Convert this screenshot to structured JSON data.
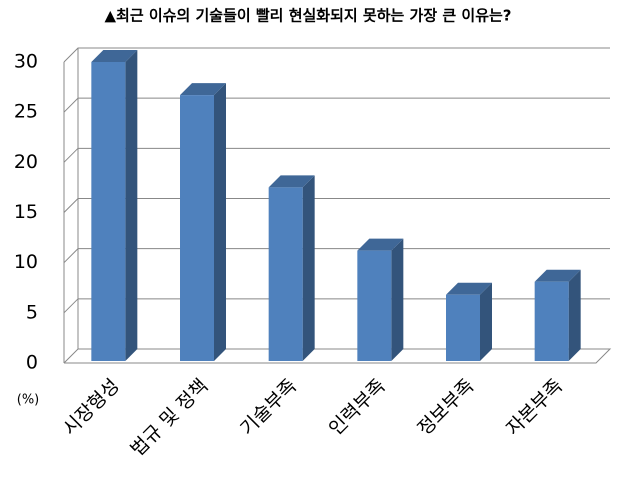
{
  "chart_data": {
    "type": "bar3d",
    "title": "▲최근 이슈의 기술들이 빨리 현실화되지 못하는 가장 큰 이유는?",
    "y_label": "(%)",
    "categories": [
      "시장형성",
      "법규 및 정책",
      "기술부족",
      "인력부족",
      "정보부족",
      "자본부족"
    ],
    "values": [
      30,
      26.7,
      17.5,
      11.2,
      6.8,
      8.1
    ],
    "color": "#4f81bd",
    "ylim": [
      0,
      30
    ],
    "yticks": [
      0,
      5,
      10,
      15,
      20,
      25,
      30
    ],
    "grid": true
  }
}
